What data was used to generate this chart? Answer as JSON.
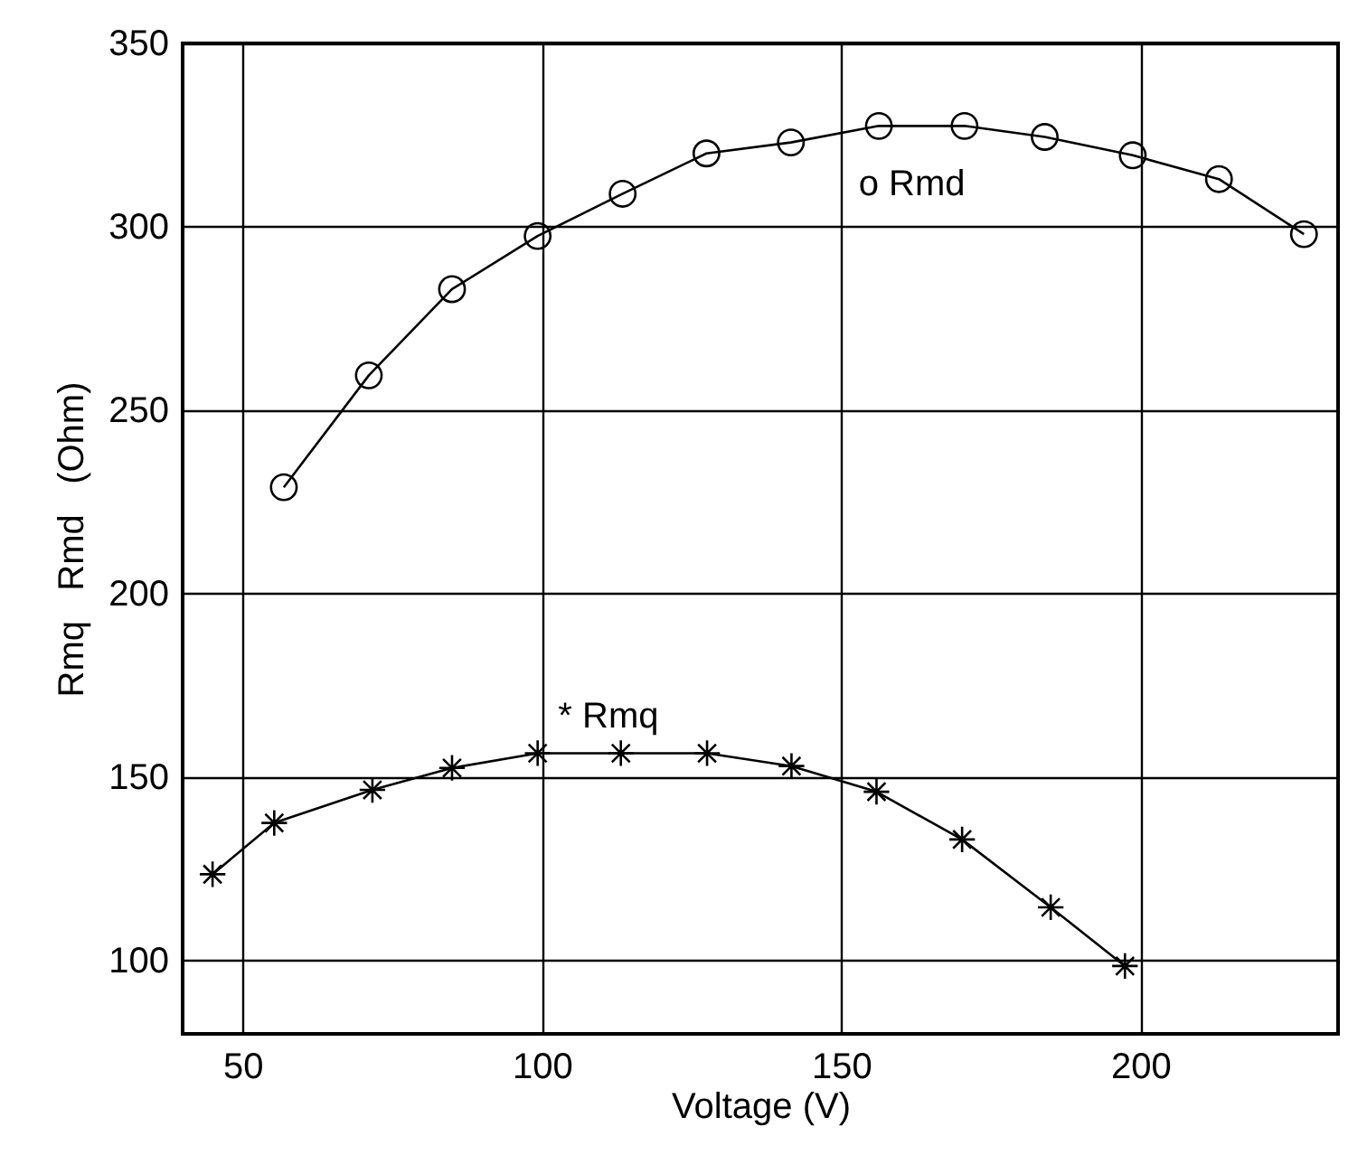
{
  "chart_data": {
    "type": "line",
    "xlabel": "Voltage (V)",
    "ylabel": "Rmq   Rmd   (Ohm)",
    "xlim": [
      40,
      233
    ],
    "xticks": [
      50,
      100,
      150,
      200
    ],
    "ylim": [
      80,
      350
    ],
    "yticks": [
      100,
      150,
      200,
      250,
      300,
      350
    ],
    "grid": true,
    "series": [
      {
        "color": "#000000",
        "marker": "circle",
        "x": [
          56.9,
          71.1,
          85.0,
          99.3,
          113.5,
          127.5,
          141.6,
          156.3,
          170.6,
          184.0,
          198.7,
          213.1,
          227.3
        ],
        "values": [
          229,
          259.5,
          283,
          297.5,
          309,
          320,
          323,
          327.5,
          327.5,
          324.5,
          319.5,
          313,
          298
        ]
      },
      {
        "color": "#000000",
        "marker": "cross",
        "x": [
          45.0,
          55.3,
          71.7,
          85.0,
          99.3,
          113.2,
          127.6,
          141.7,
          155.9,
          170.2,
          185.0,
          197.4
        ],
        "values": [
          123.5,
          137.5,
          146.5,
          152.5,
          156.5,
          156.5,
          156.5,
          153,
          146,
          133,
          114.5,
          98.5
        ]
      }
    ],
    "annotations": [
      "o Rmd",
      "* Rmq"
    ]
  }
}
